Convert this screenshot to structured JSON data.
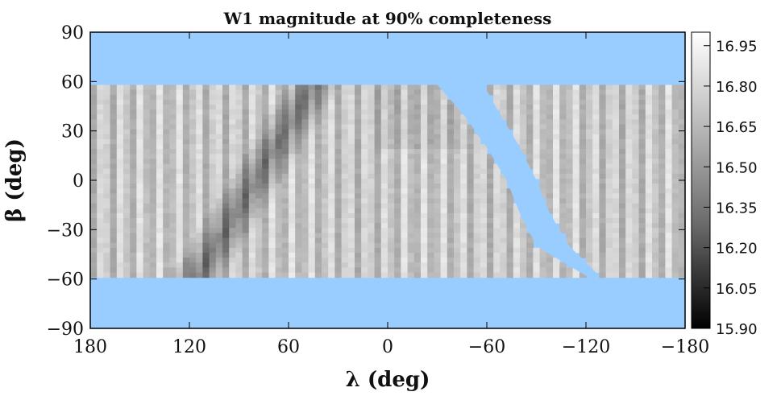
{
  "chart_data": {
    "type": "heatmap",
    "title": "W1 magnitude at 90% completeness",
    "xlabel": "λ (deg)",
    "ylabel": "β (deg)",
    "xlim": [
      180,
      -180
    ],
    "ylim": [
      -90,
      90
    ],
    "x_ticks": [
      180,
      120,
      60,
      0,
      -60,
      -120,
      -180
    ],
    "x_tick_labels": [
      "180",
      "120",
      "60",
      "0",
      "−60",
      "−120",
      "−180"
    ],
    "y_ticks": [
      90,
      60,
      30,
      0,
      -30,
      -60,
      -90
    ],
    "y_tick_labels": [
      "90",
      "60",
      "30",
      "0",
      "−30",
      "−60",
      "−90"
    ],
    "colorbar": {
      "min": 15.9,
      "max": 17.0,
      "ticks": [
        16.95,
        16.8,
        16.65,
        16.5,
        16.35,
        16.2,
        16.05,
        15.9
      ],
      "tick_labels": [
        "16.95",
        "16.80",
        "16.65",
        "16.50",
        "16.35",
        "16.20",
        "16.05",
        "15.90"
      ],
      "colormap": "gray"
    },
    "no_data_color": "#99ccff",
    "data_coverage": {
      "beta_range": [
        -58,
        58
      ],
      "gap_band_lambda_at_beta": [
        {
          "beta": 58,
          "lambda_left": -30,
          "lambda_right": -58
        },
        {
          "beta": 40,
          "lambda_left": -46,
          "lambda_right": -68
        },
        {
          "beta": 20,
          "lambda_left": -60,
          "lambda_right": -80
        },
        {
          "beta": 0,
          "lambda_left": -72,
          "lambda_right": -90
        },
        {
          "beta": -20,
          "lambda_left": -80,
          "lambda_right": -98
        },
        {
          "beta": -40,
          "lambda_left": -90,
          "lambda_right": -110
        },
        {
          "beta": -58,
          "lambda_left": -120,
          "lambda_right": -128
        }
      ]
    }
  }
}
